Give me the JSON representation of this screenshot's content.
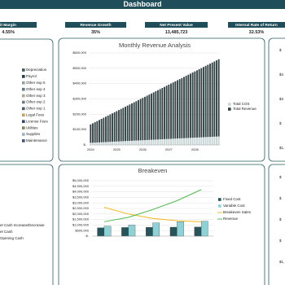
{
  "header": {
    "title": "Dashboard"
  },
  "kpis": [
    {
      "label": "rofit Margin",
      "value": "4.55%"
    },
    {
      "label": "Revenue Growth",
      "value": "35%"
    },
    {
      "label": "Net Present Value",
      "value": "13,485,723"
    },
    {
      "label": "Internal Rate of Return",
      "value": "32.53%"
    }
  ],
  "expense_legend": [
    {
      "name": "Depreciation",
      "color": "#3a5a5a"
    },
    {
      "name": "Payrol",
      "color": "#1f3d40"
    },
    {
      "name": "Other exp 5",
      "color": "#8fa5a5"
    },
    {
      "name": "Other exp 4",
      "color": "#5f7f7f"
    },
    {
      "name": "Other exp 3",
      "color": "#b5a588"
    },
    {
      "name": "Other exp 2",
      "color": "#6d7d8d"
    },
    {
      "name": "Other exp 1",
      "color": "#4a6070"
    },
    {
      "name": "Legal Fees",
      "color": "#c8a050"
    },
    {
      "name": "License Fees",
      "color": "#2d4a6a"
    },
    {
      "name": "Utilities",
      "color": "#7a8a5a"
    },
    {
      "name": "Supplies",
      "color": "#a0b0c0"
    },
    {
      "name": "Maintenance",
      "color": "#3c5878"
    }
  ],
  "cash_legend": [
    "et Cash Increase/Decrease",
    "et Cash",
    "Opening Cash"
  ],
  "right_axis_labels": {
    "top": [
      "$",
      "$4",
      "$3",
      "$",
      "$1,"
    ],
    "bottom": [
      "$",
      "$",
      "$",
      "$",
      "$1,"
    ]
  },
  "chart_data": [
    {
      "type": "bar",
      "stacked": true,
      "title": "Monthly Revenue Analysis",
      "categories": [
        "2024",
        null,
        null,
        null,
        null,
        null,
        null,
        null,
        null,
        null,
        null,
        null,
        "2025",
        null,
        null,
        null,
        null,
        null,
        null,
        null,
        null,
        null,
        null,
        null,
        "2026",
        null,
        null,
        null,
        null,
        null,
        null,
        null,
        null,
        null,
        null,
        null,
        "2027",
        null,
        null,
        null,
        null,
        null,
        null,
        null,
        null,
        null,
        null,
        null,
        "2028",
        null,
        null,
        null,
        null,
        null,
        null,
        null,
        null,
        null,
        null,
        null
      ],
      "series": [
        {
          "name": "Total COS",
          "color": "#c9d6d6",
          "values": [
            14000,
            14700,
            15400,
            16100,
            16800,
            17500,
            18200,
            18900,
            19600,
            20300,
            21000,
            21700,
            22400,
            23100,
            23800,
            24500,
            25200,
            25900,
            26600,
            27300,
            28000,
            28700,
            29400,
            30100,
            30800,
            31500,
            32200,
            32900,
            33600,
            34300,
            35000,
            35700,
            36400,
            37100,
            37800,
            38500,
            39200,
            39900,
            40600,
            41300,
            42000,
            42700,
            43400,
            44100,
            44800,
            45500,
            46200,
            46900,
            47600,
            48300,
            49000,
            49700,
            50400,
            51100,
            51800,
            52500,
            53200,
            53900,
            54600,
            55300
          ]
        },
        {
          "name": "Total Revenue",
          "color": "#2f3f42",
          "values": [
            120000,
            126500,
            133000,
            139500,
            146000,
            152500,
            159000,
            165500,
            172000,
            178500,
            185000,
            191500,
            198000,
            204500,
            211000,
            217500,
            224000,
            230500,
            237000,
            243500,
            250000,
            256500,
            263000,
            269500,
            276000,
            282500,
            289000,
            295500,
            302000,
            308500,
            315000,
            321500,
            328000,
            334500,
            341000,
            347500,
            354000,
            360500,
            367000,
            373500,
            380000,
            386500,
            393000,
            399500,
            406000,
            412500,
            419000,
            425500,
            432000,
            438500,
            445000,
            451500,
            458000,
            464500,
            471000,
            477500,
            484000,
            490500,
            497000,
            503500
          ]
        }
      ],
      "ylim": [
        0,
        600000
      ],
      "yticks": [
        {
          "value": 0,
          "label": "$-"
        },
        {
          "value": 100000,
          "label": "$100,000"
        },
        {
          "value": 200000,
          "label": "$200,000"
        },
        {
          "value": 300000,
          "label": "$300,000"
        },
        {
          "value": 400000,
          "label": "$400,000"
        },
        {
          "value": 500000,
          "label": "$500,000"
        },
        {
          "value": 600000,
          "label": "$600,000"
        }
      ],
      "grid": true
    },
    {
      "type": "bar",
      "stacked": false,
      "title": "Breakeven",
      "categories": [
        null,
        null,
        null,
        null,
        null
      ],
      "series": [
        {
          "name": "Fixed Cost",
          "type": "bar",
          "color": "#25555a",
          "values": [
            750000,
            780000,
            800000,
            810000,
            820000
          ]
        },
        {
          "name": "Variable Cost",
          "type": "bar",
          "color": "#8ed1d6",
          "values": [
            900000,
            1000000,
            1200000,
            1300000,
            1350000
          ]
        },
        {
          "name": "Breakeven Sales",
          "type": "line",
          "color": "#f2b81e",
          "values": [
            2600000,
            2000000,
            1600000,
            1400000,
            1300000
          ]
        },
        {
          "name": "Revenue",
          "type": "line",
          "color": "#4cbb4c",
          "values": [
            1300000,
            1700000,
            2400000,
            3200000,
            4200000
          ]
        }
      ],
      "ylim": [
        0,
        5000000
      ],
      "yticks": [
        {
          "value": 0,
          "label": "$-"
        },
        {
          "value": 500000,
          "label": "$500,000"
        },
        {
          "value": 1000000,
          "label": "$1,000,000"
        },
        {
          "value": 1500000,
          "label": "$1,500,000"
        },
        {
          "value": 2000000,
          "label": "$2,000,000"
        },
        {
          "value": 2500000,
          "label": "$2,500,000"
        },
        {
          "value": 3000000,
          "label": "$3,000,000"
        },
        {
          "value": 3500000,
          "label": "$3,500,000"
        },
        {
          "value": 4000000,
          "label": "$4,000,000"
        },
        {
          "value": 4500000,
          "label": "$4,500,000"
        },
        {
          "value": 5000000,
          "label": "$5,000,000"
        }
      ],
      "grid": true
    }
  ]
}
